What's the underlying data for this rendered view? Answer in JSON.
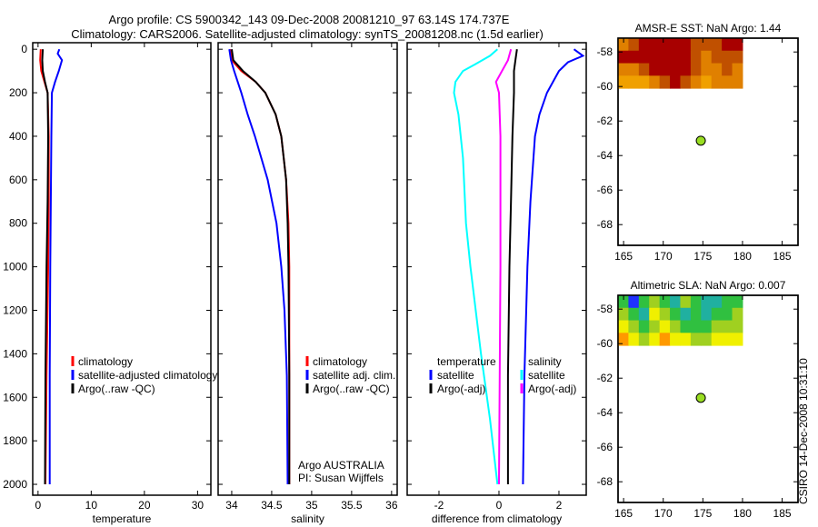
{
  "title_line1": "Argo profile: CS 5900342_143 09-Dec-2008 20081210_97 63.14S 174.737E",
  "title_line2": "Climatology: CARS2006. Satellite-adjusted climatology: synTS_20081208.nc (1.5d earlier)",
  "footer_stamp": "CSIRO 14-Dec-2008 10:31:10",
  "colors": {
    "red": "#ff0000",
    "blue": "#0000ff",
    "black": "#000000",
    "cyan": "#00ffff",
    "magenta": "#ff00ff"
  },
  "chart_data": [
    {
      "type": "line",
      "xlabel": "temperature",
      "xlim": [
        -1,
        32.5
      ],
      "ylim": [
        -30,
        2050
      ],
      "xticks": [
        "0",
        "10",
        "20",
        "30"
      ],
      "xtickvals": [
        0,
        10,
        20,
        30
      ],
      "yticks": [
        "0",
        "200",
        "400",
        "600",
        "800",
        "1000",
        "1200",
        "1400",
        "1600",
        "1800",
        "2000"
      ],
      "ytickvals": [
        0,
        200,
        400,
        600,
        800,
        1000,
        1200,
        1400,
        1600,
        1800,
        2000
      ],
      "series": [
        {
          "name": "climatology",
          "color": "#ff0000",
          "depth": [
            0,
            50,
            100,
            150,
            200,
            400,
            700,
            1000,
            1500,
            2000
          ],
          "values": [
            0.5,
            0.4,
            0.6,
            1.2,
            1.8,
            2.0,
            2.0,
            1.9,
            1.6,
            1.4
          ]
        },
        {
          "name": "satellite-adjusted climatology",
          "color": "#0000ff",
          "depth": [
            0,
            20,
            50,
            100,
            150,
            200,
            400,
            700,
            1000,
            1500,
            2000
          ],
          "values": [
            4.0,
            3.7,
            4.5,
            3.9,
            3.2,
            2.6,
            2.5,
            2.4,
            2.3,
            2.2,
            2.2
          ]
        },
        {
          "name": "Argo(..raw -QC)",
          "color": "#000000",
          "depth": [
            0,
            50,
            100,
            150,
            200,
            400,
            700,
            1000,
            1500,
            2000
          ],
          "values": [
            0.9,
            0.8,
            0.9,
            1.3,
            1.8,
            1.9,
            1.8,
            1.6,
            1.4,
            1.3
          ]
        }
      ],
      "legend": [
        "climatology",
        "satellite-adjusted climatology",
        "Argo(..raw -QC)"
      ]
    },
    {
      "type": "line",
      "xlabel": "salinity",
      "xlim": [
        33.83,
        36.07
      ],
      "ylim": [
        -30,
        2050
      ],
      "xticks": [
        "34",
        "34.5",
        "35",
        "35.5",
        "36"
      ],
      "xtickvals": [
        34,
        34.5,
        35,
        35.5,
        36
      ],
      "series": [
        {
          "name": "climatology",
          "color": "#ff0000",
          "depth": [
            0,
            50,
            100,
            150,
            200,
            300,
            400,
            600,
            800,
            1000,
            1500,
            2000
          ],
          "values": [
            33.98,
            34.0,
            34.12,
            34.3,
            34.42,
            34.55,
            34.62,
            34.68,
            34.71,
            34.72,
            34.72,
            34.72
          ]
        },
        {
          "name": "satellite adj. clim.",
          "color": "#0000ff",
          "depth": [
            0,
            50,
            100,
            200,
            300,
            400,
            600,
            800,
            1000,
            1200,
            1500,
            2000
          ],
          "values": [
            33.97,
            33.99,
            34.03,
            34.12,
            34.2,
            34.29,
            34.45,
            34.56,
            34.62,
            34.66,
            34.69,
            34.7
          ]
        },
        {
          "name": "Argo(..raw -QC)",
          "color": "#000000",
          "depth": [
            0,
            50,
            100,
            150,
            200,
            300,
            400,
            600,
            800,
            1000,
            1500,
            2000
          ],
          "values": [
            34.0,
            34.02,
            34.14,
            34.3,
            34.42,
            34.55,
            34.62,
            34.68,
            34.7,
            34.71,
            34.72,
            34.72
          ]
        }
      ],
      "legend": [
        "climatology",
        "satellite adj. clim.",
        "Argo(..raw -QC)"
      ],
      "annotation": [
        "Argo AUSTRALIA",
        "PI: Susan Wijffels"
      ]
    },
    {
      "type": "line",
      "xlabel": "difference from climatology",
      "xlim": [
        -3.06,
        2.91
      ],
      "ylim": [
        -30,
        2050
      ],
      "xticks": [
        "-2",
        "0",
        "2"
      ],
      "xtickvals": [
        -2,
        0,
        2
      ],
      "series": [
        {
          "name": "temperature satellite",
          "color": "#0000ff",
          "depth": [],
          "values": []
        },
        {
          "name": "temperature Argo(-adj)",
          "color": "#000000",
          "depth": [
            0,
            50,
            100,
            200,
            400,
            700,
            1000,
            1500,
            2000
          ],
          "values": [
            0.6,
            0.55,
            0.5,
            0.5,
            0.45,
            0.4,
            0.35,
            0.3,
            0.3
          ]
        },
        {
          "name": "salinity satellite (cyan)",
          "color": "#00ffff",
          "depth": [
            0,
            30,
            70,
            100,
            150,
            200,
            300,
            500,
            800,
            1000,
            1400,
            1700,
            2000
          ],
          "values": [
            -0.05,
            -0.3,
            -0.8,
            -1.2,
            -1.45,
            -1.5,
            -1.35,
            -1.2,
            -1.1,
            -0.95,
            -0.6,
            -0.3,
            -0.05
          ]
        },
        {
          "name": "salinity satellite (blue)",
          "color": "#0000ff",
          "depth": [
            0,
            30,
            60,
            100,
            150,
            200,
            300,
            400,
            700,
            1000,
            1500,
            2000
          ],
          "values": [
            2.5,
            2.8,
            2.3,
            2.0,
            1.8,
            1.6,
            1.35,
            1.2,
            1.05,
            0.95,
            0.85,
            0.8
          ]
        },
        {
          "name": "salinity Argo(-adj)",
          "color": "#ff00ff",
          "depth": [
            0,
            50,
            100,
            150,
            200,
            400,
            1000,
            2000
          ],
          "values": [
            0.4,
            0.3,
            0.1,
            -0.1,
            0.0,
            0.05,
            0.05,
            0.0
          ]
        }
      ],
      "legend_left": [
        "temperature",
        "satellite",
        "Argo(-adj)"
      ],
      "legend_right": [
        "salinity",
        "satellite",
        "Argo(-adj)"
      ]
    },
    {
      "type": "heatmap",
      "title": "AMSR-E SST: NaN Argo: 1.44",
      "xlim": [
        164.3,
        187
      ],
      "ylim": [
        -69.2,
        -57.2
      ],
      "xticks": [
        "165",
        "170",
        "175",
        "180",
        "185"
      ],
      "xtickvals": [
        165,
        170,
        175,
        180,
        185
      ],
      "yticks": [
        "-58",
        "-60",
        "-62",
        "-64",
        "-66",
        "-68"
      ],
      "ytickvals": [
        -58,
        -60,
        -62,
        -64,
        -66,
        -68
      ],
      "data_extent": [
        164.3,
        180,
        -60.1,
        -57.2
      ],
      "grid": [
        [
          3,
          2,
          1,
          1,
          1,
          1,
          1,
          2,
          2,
          2,
          1,
          1
        ],
        [
          1,
          1,
          1,
          1,
          1,
          1,
          1,
          2,
          3,
          2,
          2,
          2
        ],
        [
          3,
          3,
          2,
          1,
          1,
          1,
          1,
          2,
          3,
          3,
          2,
          3
        ],
        [
          4,
          4,
          4,
          3,
          2,
          1,
          2,
          3,
          4,
          3,
          3,
          3
        ]
      ],
      "argo_point": [
        174.74,
        -63.14
      ]
    },
    {
      "type": "heatmap",
      "title": "Altimetric SLA: NaN Argo: 0.007",
      "xlim": [
        164.3,
        187
      ],
      "ylim": [
        -69.2,
        -57.2
      ],
      "xticks": [
        "165",
        "170",
        "175",
        "180",
        "185"
      ],
      "xtickvals": [
        165,
        170,
        175,
        180,
        185
      ],
      "yticks": [
        "-58",
        "-60",
        "-62",
        "-64",
        "-66",
        "-68"
      ],
      "ytickvals": [
        -58,
        -60,
        -62,
        -64,
        -66,
        -68
      ],
      "data_extent": [
        164.3,
        180,
        -60.1,
        -57.2
      ],
      "grid": [
        [
          2,
          0,
          2,
          3,
          2,
          1,
          3,
          2,
          1,
          1,
          2,
          2
        ],
        [
          3,
          2,
          1,
          4,
          3,
          2,
          1,
          2,
          1,
          2,
          2,
          3
        ],
        [
          4,
          3,
          2,
          3,
          4,
          3,
          2,
          2,
          2,
          3,
          3,
          3
        ],
        [
          5,
          4,
          3,
          4,
          5,
          4,
          4,
          3,
          3,
          4,
          4,
          4
        ]
      ],
      "argo_point": [
        174.74,
        -63.14
      ]
    }
  ]
}
